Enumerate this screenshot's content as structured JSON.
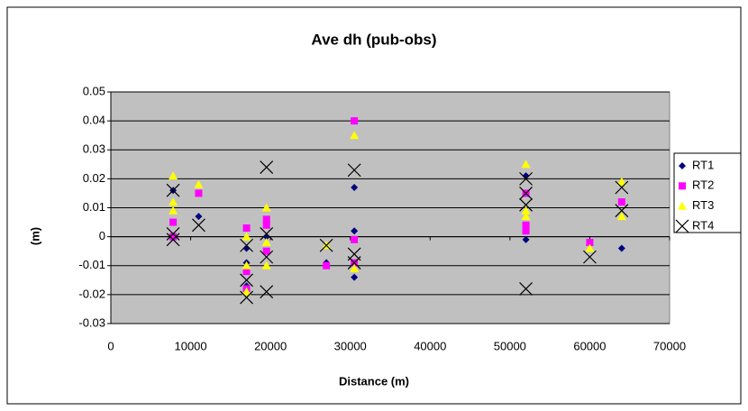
{
  "chart_data": {
    "type": "scatter",
    "title": "Ave dh (pub-obs)",
    "x_label": "Distance (m)",
    "y_label": "(m)",
    "xlim": [
      0,
      70000
    ],
    "xticks": [
      0,
      10000,
      20000,
      30000,
      40000,
      50000,
      60000,
      70000
    ],
    "ylim": [
      -0.03,
      0.05
    ],
    "yticks": [
      -0.03,
      -0.02,
      -0.01,
      0,
      0.01,
      0.02,
      0.03,
      0.04,
      0.05
    ],
    "grid": true,
    "legend": "right",
    "plot_background": "#c0c0c0",
    "series": [
      {
        "name": "RT1",
        "color": "#000080",
        "marker": "diamond",
        "x": [
          7800,
          7800,
          7800,
          11000,
          17000,
          17000,
          17000,
          19500,
          19500,
          27000,
          30500,
          30500,
          30500,
          52000,
          52000,
          64000
        ],
        "y": [
          0.016,
          0.005,
          0.0,
          0.007,
          -0.004,
          -0.009,
          -0.017,
          0.0,
          -0.005,
          -0.009,
          0.017,
          0.002,
          -0.014,
          0.021,
          -0.001,
          -0.004
        ]
      },
      {
        "name": "RT2",
        "color": "#ff00ff",
        "marker": "square",
        "x": [
          7800,
          7800,
          11000,
          17000,
          17000,
          17000,
          19500,
          19500,
          19500,
          27000,
          30500,
          30500,
          30500,
          52000,
          52000,
          52000,
          60000,
          64000
        ],
        "y": [
          0.005,
          0.0,
          0.015,
          0.003,
          -0.012,
          -0.018,
          0.006,
          0.004,
          -0.005,
          -0.01,
          0.04,
          -0.001,
          -0.009,
          0.015,
          0.004,
          0.002,
          -0.002,
          0.012
        ]
      },
      {
        "name": "RT3",
        "color": "#ffff00",
        "marker": "triangle",
        "x": [
          7800,
          7800,
          7800,
          11000,
          17000,
          17000,
          17000,
          19500,
          19500,
          19500,
          27000,
          30500,
          30500,
          52000,
          52000,
          52000,
          60000,
          64000,
          64000
        ],
        "y": [
          0.021,
          0.012,
          0.009,
          0.018,
          0.0,
          -0.01,
          -0.019,
          0.01,
          -0.002,
          -0.01,
          -0.003,
          0.035,
          -0.011,
          0.025,
          0.009,
          0.007,
          -0.004,
          0.019,
          0.007
        ]
      },
      {
        "name": "RT4",
        "color": "#000000",
        "marker": "x",
        "x": [
          7800,
          7800,
          7800,
          11000,
          17000,
          17000,
          17000,
          19500,
          19500,
          19500,
          19500,
          27000,
          30500,
          30500,
          30500,
          52000,
          52000,
          52000,
          52000,
          60000,
          64000,
          64000
        ],
        "y": [
          0.016,
          0.001,
          -0.001,
          0.004,
          -0.003,
          -0.015,
          -0.021,
          0.024,
          0.001,
          -0.007,
          -0.019,
          -0.003,
          0.023,
          -0.006,
          -0.009,
          0.02,
          0.015,
          0.011,
          -0.018,
          -0.007,
          0.017,
          0.009
        ]
      }
    ]
  }
}
